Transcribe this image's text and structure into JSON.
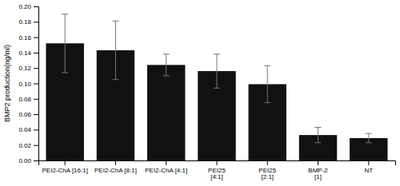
{
  "chart_data": {
    "type": "bar",
    "categories": [
      "PEI2-ChA [16:1]",
      "PEI2-ChA [8:1]",
      "PEI2-ChA [4:1]",
      "PEI25\n[4:1]",
      "PEI25\n[2:1]",
      "BMP-2\n[1]",
      "NT"
    ],
    "values": [
      0.152,
      0.143,
      0.124,
      0.116,
      0.099,
      0.033,
      0.029
    ],
    "errors": [
      0.038,
      0.038,
      0.014,
      0.022,
      0.024,
      0.01,
      0.006
    ],
    "color": "#111111",
    "ylabel": "BMP2 production(ng/ml)",
    "ylim": [
      0.0,
      0.2
    ],
    "yticks": [
      {
        "value": 0.0,
        "label": "0.00"
      },
      {
        "value": 0.02,
        "label": "0.02"
      },
      {
        "value": 0.04,
        "label": "0.04"
      },
      {
        "value": 0.06,
        "label": "0.06"
      },
      {
        "value": 0.08,
        "label": "0.08"
      },
      {
        "value": 0.1,
        "label": "0.10"
      },
      {
        "value": 0.12,
        "label": "0.12"
      },
      {
        "value": 0.14,
        "label": "0.14"
      },
      {
        "value": 0.16,
        "label": "0.16"
      },
      {
        "value": 0.18,
        "label": "0.18"
      },
      {
        "value": 0.2,
        "label": "0.20"
      }
    ],
    "grid": false
  }
}
